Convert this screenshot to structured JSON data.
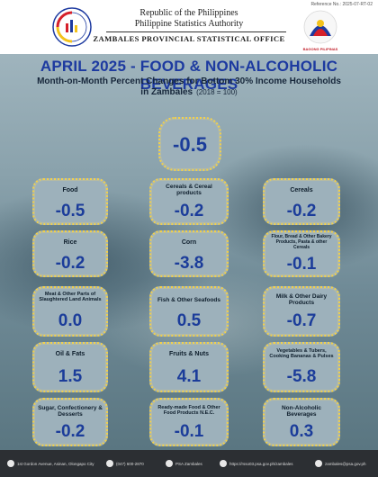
{
  "header": {
    "reference_no": "Reference No.: 2025-07-RT-02",
    "republic": "Republic of the Philippines",
    "agency": "Philippine Statistics Authority",
    "office": "ZAMBALES PROVINCIAL STATISTICAL OFFICE",
    "bagong_pilipinas": "BAGONG PILIPINAS"
  },
  "title": "APRIL 2025 - FOOD & NON-ALCOHOLIC BEVERAGES",
  "subtitle_line1": "Month-on-Month Percent Changes for Bottom 30% Income Households",
  "subtitle_line2": "in Zambales",
  "base_year": "(2018 = 100)",
  "headline_value": "-0.5",
  "tiles": [
    {
      "label": "Food",
      "value": "-0.5"
    },
    {
      "label": "Cereals & Cereal products",
      "value": "-0.2"
    },
    {
      "label": "Cereals",
      "value": "-0.2"
    },
    {
      "label": "Rice",
      "value": "-0.2"
    },
    {
      "label": "Corn",
      "value": "-3.8"
    },
    {
      "label": "Flour, Bread & Other Bakery Products, Pasta & other Cereals",
      "value": "-0.1"
    },
    {
      "label": "Meat & Other Parts of Slaughtered Land Animals",
      "value": "0.0"
    },
    {
      "label": "Fish & Other Seafoods",
      "value": "0.5"
    },
    {
      "label": "Milk & Other Dairy Products",
      "value": "-0.7"
    },
    {
      "label": "Oil & Fats",
      "value": "1.5"
    },
    {
      "label": "Fruits & Nuts",
      "value": "4.1"
    },
    {
      "label": "Vegetables & Tubers, Cooking Bananas & Pulses",
      "value": "-5.8"
    },
    {
      "label": "Sugar, Confectionery & Desserts",
      "value": "-0.2"
    },
    {
      "label": "Ready-made Food & Other Food Products N.E.C.",
      "value": "-0.1"
    },
    {
      "label": "Non-Alcoholic Beverages",
      "value": "0.3"
    }
  ],
  "footer": {
    "address": "1st Gordon Avenue, Asinan, Olongapo City",
    "phone": "(047) 600-2870",
    "facebook": "PSA Zambales",
    "website": "https://rsso03.psa.gov.ph/zambales",
    "email": "zambales@psa.gov.ph"
  },
  "colors": {
    "title_blue": "#1d3aa0",
    "value_blue": "#1b3c9a",
    "tile_border_yellow": "#f2d04a",
    "footer_bg": "#2c2f33"
  }
}
